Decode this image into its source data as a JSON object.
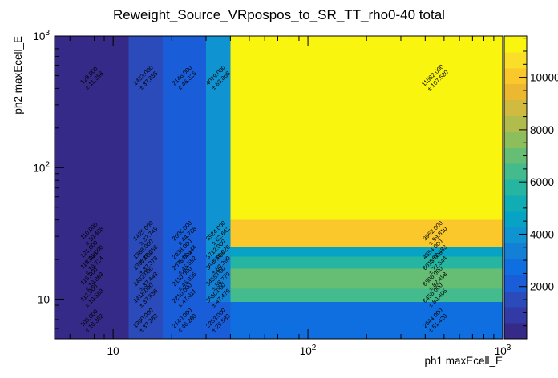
{
  "chart_data": {
    "type": "heatmap",
    "title": "Reweight_Source_VRpospos_to_SR_TT_rho0-40 total",
    "xlabel": "ph1 maxEcell_E",
    "ylabel": "ph2 maxEcell_E",
    "x_scale": "log",
    "y_scale": "log",
    "xlim": [
      5,
      1000
    ],
    "ylim": [
      5,
      1000
    ],
    "x_edges": [
      5,
      12,
      18,
      30,
      40,
      1000
    ],
    "y_edges": [
      5,
      9.5,
      12,
      17,
      21,
      25,
      40,
      1000
    ],
    "zlim": [
      0,
      11582
    ],
    "colorbar_ticks": [
      2000,
      4000,
      6000,
      8000,
      10000
    ],
    "colorbar_tick_labels": [
      "2000",
      "4000",
      "6000",
      "8000",
      "10000"
    ],
    "x_tick_labels": [
      {
        "value": 10,
        "base": "10",
        "exp": ""
      },
      {
        "value": 100,
        "base": "10",
        "exp": "2"
      },
      {
        "value": 1000,
        "base": "10",
        "exp": "3"
      }
    ],
    "y_tick_labels": [
      {
        "value": 10,
        "base": "10",
        "exp": ""
      },
      {
        "value": 100,
        "base": "10",
        "exp": "2"
      },
      {
        "value": 1000,
        "base": "10",
        "exp": "3"
      }
    ],
    "cells": [
      {
        "x": 0,
        "y": 6,
        "value": 129,
        "label": "129.000",
        "err": "± 11.358"
      },
      {
        "x": 1,
        "y": 6,
        "value": 1433,
        "label": "1433.000",
        "err": "± 37.855"
      },
      {
        "x": 2,
        "y": 6,
        "value": 2146,
        "label": "2146.000",
        "err": "± 46.325"
      },
      {
        "x": 3,
        "y": 6,
        "value": 4079,
        "label": "4079.000",
        "err": "± 63.868"
      },
      {
        "x": 4,
        "y": 6,
        "value": 11582,
        "label": "11582.000",
        "err": "± 107.620"
      },
      {
        "x": 0,
        "y": 5,
        "value": 110,
        "label": "110.000",
        "err": "± 10.488"
      },
      {
        "x": 1,
        "y": 5,
        "value": 1425,
        "label": "1425.000",
        "err": "± 37.749"
      },
      {
        "x": 2,
        "y": 5,
        "value": 2006,
        "label": "2006.000",
        "err": "± 44.788"
      },
      {
        "x": 3,
        "y": 5,
        "value": 3924,
        "label": "3924.000",
        "err": "± 62.642"
      },
      {
        "x": 4,
        "y": 5,
        "value": 9962,
        "label": "9962.000",
        "err": "± 99.810"
      },
      {
        "x": 0,
        "y": 4,
        "value": 121,
        "label": "121.000",
        "err": "± 11.000"
      },
      {
        "x": 1,
        "y": 4,
        "value": 1388,
        "label": "1388.000",
        "err": "± 37.256"
      },
      {
        "x": 2,
        "y": 4,
        "value": 2038,
        "label": "2038.000",
        "err": "± 45.144"
      },
      {
        "x": 3,
        "y": 4,
        "value": 3712,
        "label": "3712.000",
        "err": "± 60.926"
      },
      {
        "x": 4,
        "y": 4,
        "value": 4554,
        "label": "4554.000",
        "err": "± 67.483"
      },
      {
        "x": 0,
        "y": 3,
        "value": 115,
        "label": "115.000",
        "err": "± 10.724"
      },
      {
        "x": 1,
        "y": 3,
        "value": 1397,
        "label": "1397.000",
        "err": "± 37.376"
      },
      {
        "x": 2,
        "y": 3,
        "value": 2075,
        "label": "2075.000",
        "err": "± 45.552"
      },
      {
        "x": 3,
        "y": 3,
        "value": 3647,
        "label": "3647.000",
        "err": "± 60.390"
      },
      {
        "x": 4,
        "y": 3,
        "value": 6013,
        "label": "6013.000",
        "err": "± 77.544"
      },
      {
        "x": 0,
        "y": 2,
        "value": 118,
        "label": "118.000",
        "err": "± 10.863"
      },
      {
        "x": 1,
        "y": 2,
        "value": 1402,
        "label": "1402.000",
        "err": "± 37.443"
      },
      {
        "x": 2,
        "y": 2,
        "value": 2110,
        "label": "2110.000",
        "err": "± 45.935"
      },
      {
        "x": 3,
        "y": 2,
        "value": 3455,
        "label": "3455.000",
        "err": "± 58.779"
      },
      {
        "x": 4,
        "y": 2,
        "value": 6806,
        "label": "6806.000",
        "err": "± 82.498"
      },
      {
        "x": 0,
        "y": 1,
        "value": 112,
        "label": "112.000",
        "err": "± 10.583"
      },
      {
        "x": 1,
        "y": 1,
        "value": 1418,
        "label": "1418.000",
        "err": "± 37.656"
      },
      {
        "x": 2,
        "y": 1,
        "value": 2210,
        "label": "2210.000",
        "err": "± 47.011"
      },
      {
        "x": 3,
        "y": 1,
        "value": 3560,
        "label": "3560.000",
        "err": "± 47.476"
      },
      {
        "x": 4,
        "y": 1,
        "value": 6456,
        "label": "6456.000",
        "err": "± 80.405"
      },
      {
        "x": 0,
        "y": 0,
        "value": 108,
        "label": "108.000",
        "err": "± 10.392"
      },
      {
        "x": 1,
        "y": 0,
        "value": 1390,
        "label": "1390.000",
        "err": "± 37.283"
      },
      {
        "x": 2,
        "y": 0,
        "value": 2140,
        "label": "2140.000",
        "err": "± 46.260"
      },
      {
        "x": 3,
        "y": 0,
        "value": 2253,
        "label": "2253.000",
        "err": "± 29.583"
      },
      {
        "x": 4,
        "y": 0,
        "value": 2644,
        "label": "2644.000",
        "err": "± 51.420"
      }
    ]
  },
  "colors": {
    "palette": [
      "#352a87",
      "#323aa6",
      "#2a4bb9",
      "#1a5dd8",
      "#0f6fe0",
      "#1380d5",
      "#0f93d1",
      "#06a3c4",
      "#10adb5",
      "#26b5a1",
      "#43bb8c",
      "#66be74",
      "#8cbe5c",
      "#b0bc4c",
      "#d0ba3f",
      "#ecb830",
      "#fbc82c",
      "#fade28",
      "#f9f50f"
    ]
  }
}
